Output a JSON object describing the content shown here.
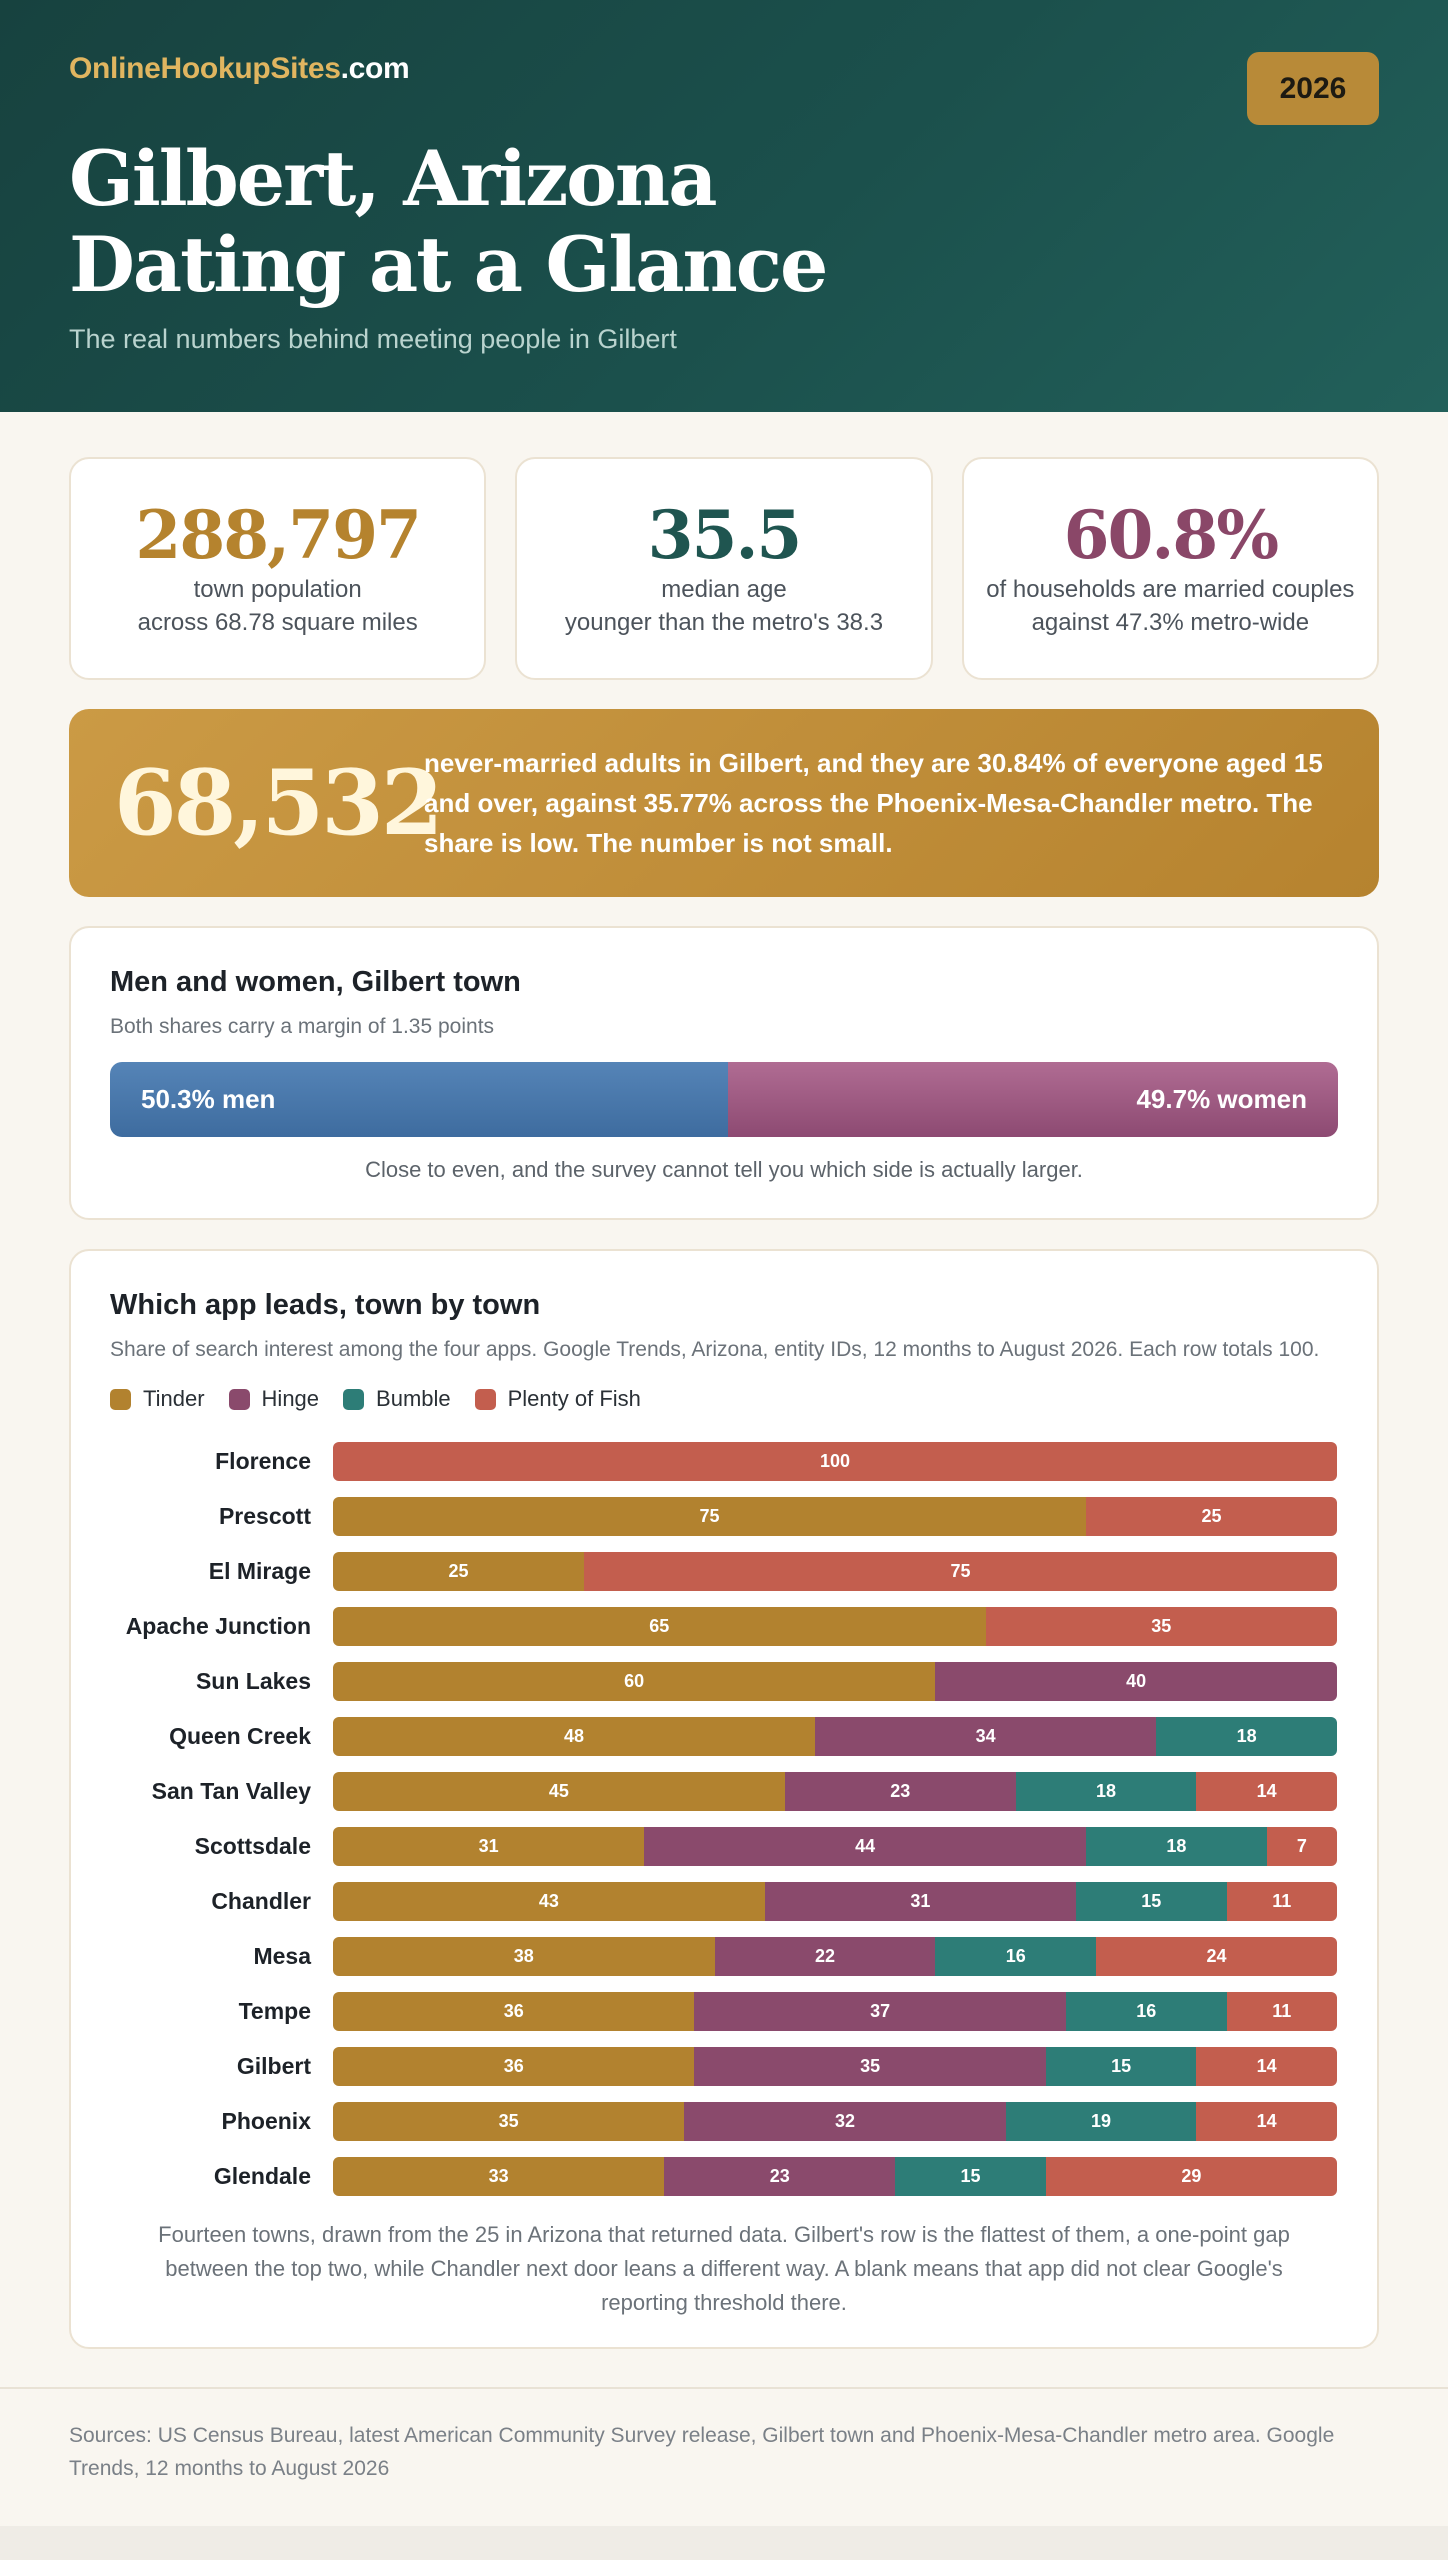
{
  "brand": {
    "part1": "OnlineHookupSites",
    "part2": ".com"
  },
  "year": "2026",
  "title": {
    "line1": "Gilbert, Arizona",
    "line2": "Dating at a Glance"
  },
  "subtitle": "The real numbers behind meeting people in Gilbert",
  "stats": [
    {
      "value": "288,797",
      "line1": "town population",
      "line2": "across 68.78 square miles",
      "color": "#b5832e"
    },
    {
      "value": "35.5",
      "line1": "median age",
      "line2": "younger than the metro's 38.3",
      "color": "#1f5550"
    },
    {
      "value": "60.8%",
      "line1": "of households are married couples",
      "line2": "against 47.3% metro-wide",
      "color": "#8a4768"
    }
  ],
  "banner": {
    "value": "68,532",
    "text": "never-married adults in Gilbert, and they are 30.84% of everyone aged 15 and over, against 35.77% across the Phoenix-Mesa-Chandler metro. The share is low. The number is not small."
  },
  "gender": {
    "title": "Men and women, Gilbert town",
    "note": "Both shares carry a margin of 1.35 points",
    "men_pct": 50.3,
    "women_pct": 49.7,
    "men_label": "50.3% men",
    "women_label": "49.7% women",
    "caption": "Close to even, and the survey cannot tell you which side is actually larger."
  },
  "apps": {
    "title": "Which app leads, town by town",
    "note": "Share of search interest among the four apps. Google Trends, Arizona, entity IDs, 12 months to August 2026. Each row totals 100.",
    "caption": "Fourteen towns, drawn from the 25 in Arizona that returned data. Gilbert's row is the flattest of them, a one-point gap between the top two, while Chandler next door leans a different way. A blank means that app did not clear Google's reporting threshold there."
  },
  "chart_data": {
    "type": "bar",
    "stacked": true,
    "orientation": "horizontal",
    "categories": [
      "Florence",
      "Prescott",
      "El Mirage",
      "Apache Junction",
      "Sun Lakes",
      "Queen Creek",
      "San Tan Valley",
      "Scottsdale",
      "Chandler",
      "Mesa",
      "Tempe",
      "Gilbert",
      "Phoenix",
      "Glendale"
    ],
    "series": [
      {
        "name": "Tinder",
        "color": "#b2822f",
        "values": [
          null,
          75,
          25,
          65,
          60,
          48,
          45,
          31,
          43,
          38,
          36,
          36,
          35,
          33
        ]
      },
      {
        "name": "Hinge",
        "color": "#8a4a6c",
        "values": [
          null,
          null,
          null,
          null,
          40,
          34,
          23,
          44,
          31,
          22,
          37,
          35,
          32,
          23
        ]
      },
      {
        "name": "Bumble",
        "color": "#2d7d77",
        "values": [
          null,
          null,
          null,
          null,
          null,
          18,
          18,
          18,
          15,
          16,
          16,
          15,
          19,
          15
        ]
      },
      {
        "name": "Plenty of Fish",
        "color": "#c35e4e",
        "values": [
          100,
          25,
          75,
          35,
          null,
          null,
          14,
          7,
          11,
          24,
          11,
          14,
          14,
          29
        ]
      }
    ],
    "xlim": [
      0,
      100
    ]
  },
  "footer": "Sources: US Census Bureau, latest American Community Survey release, Gilbert town and Phoenix-Mesa-Chandler metro area. Google Trends, 12 months to August 2026"
}
